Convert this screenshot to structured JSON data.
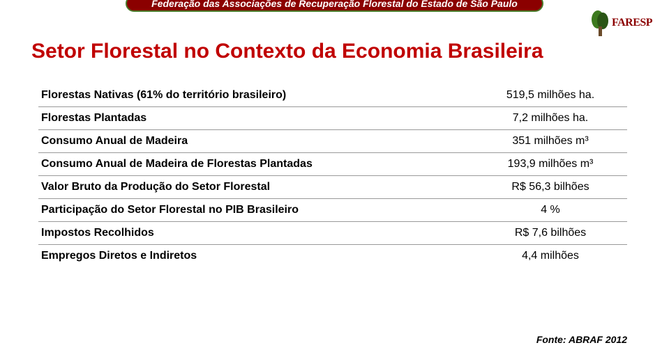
{
  "header": {
    "org_name": "Federação das Associações de Recuperação Florestal do Estado de São Paulo",
    "bar_bg": "#8b0000",
    "bar_border": "#4a7a2a",
    "text_color": "#ffffff"
  },
  "logo": {
    "brand": "FARESP",
    "brand_color": "#8b0000",
    "tree_green": "#3d7a1f",
    "tree_dark": "#2a5515"
  },
  "title": {
    "text": "Setor Florestal no Contexto da Economia Brasileira",
    "color": "#c00000",
    "fontsize": 30
  },
  "table": {
    "rows": [
      {
        "label": "Florestas Nativas (61% do território brasileiro)",
        "value": "519,5 milhões ha.",
        "underline": true
      },
      {
        "label": "Florestas Plantadas",
        "value": "7,2 milhões ha.",
        "underline": true
      },
      {
        "label": "Consumo Anual de Madeira",
        "value": "351 milhões  m³",
        "underline": true
      },
      {
        "label": "Consumo Anual de Madeira de Florestas Plantadas",
        "value": "193,9 milhões m³",
        "underline": true
      },
      {
        "label": "Valor Bruto da Produção do Setor Florestal",
        "value": "R$ 56,3 bilhões",
        "underline": true
      },
      {
        "label": "Participação do Setor Florestal no PIB Brasileiro",
        "value": "4 %",
        "underline": true
      },
      {
        "label": "Impostos Recolhidos",
        "value": "R$ 7,6 bilhões",
        "underline": true
      },
      {
        "label": "Empregos Diretos e Indiretos",
        "value": "4,4 milhões",
        "underline": false
      }
    ],
    "label_fontsize": 16,
    "value_fontsize": 16,
    "underline_color": "#999999"
  },
  "footer": {
    "text": "Fonte: ABRAF 2012",
    "fontsize": 14
  }
}
